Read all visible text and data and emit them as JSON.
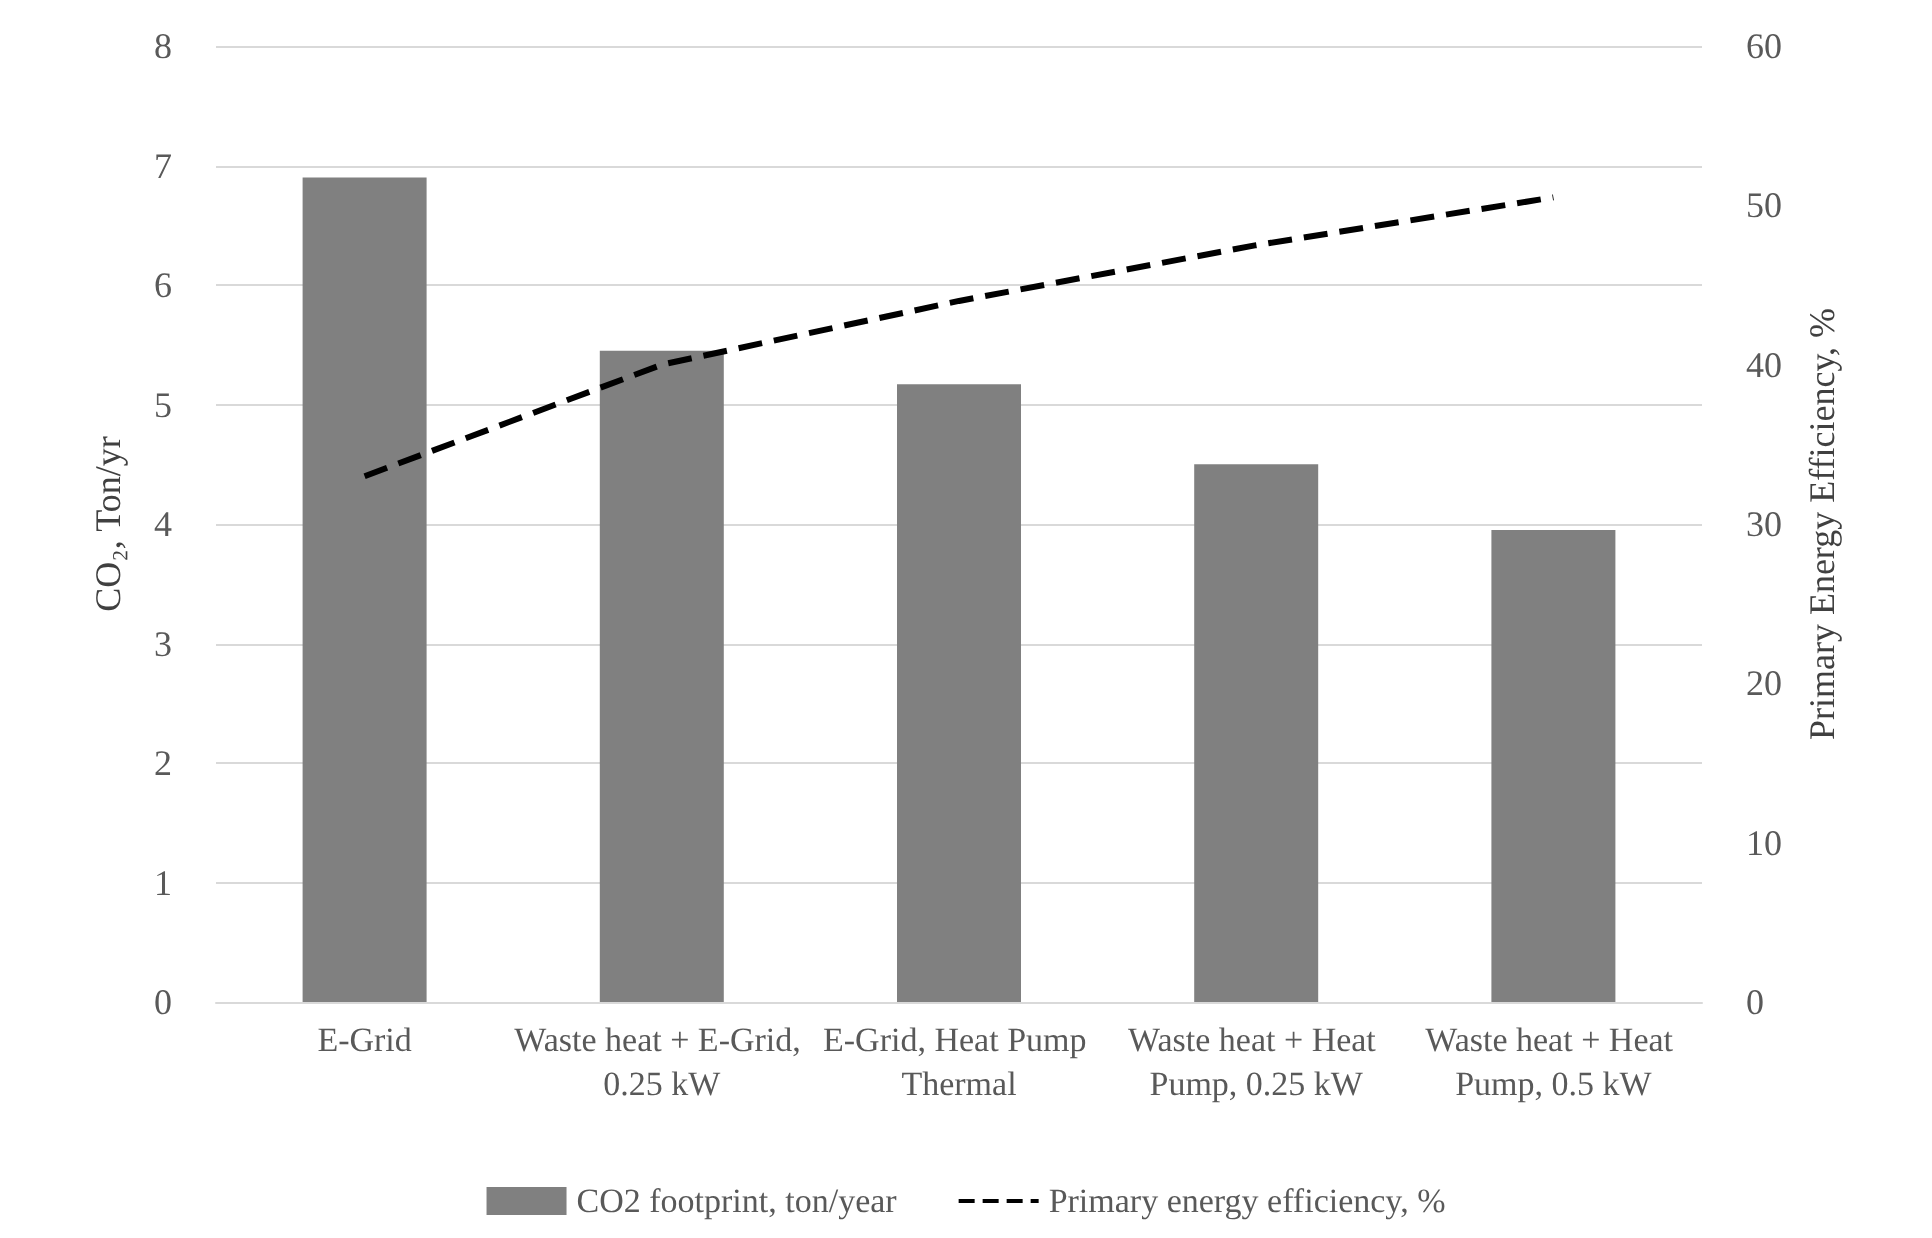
{
  "chart_data": {
    "type": "bar",
    "ylabel": "CO₂, Ton/yr",
    "y2label": "Primary Energy Efficiency, %",
    "categories": [
      "E-Grid",
      "Waste heat + E-Grid, 0.25 kW",
      "E-Grid, Heat Pump Thermal",
      "Waste heat + Heat Pump, 0.25 kW",
      "Waste heat + Heat Pump, 0.5 kW"
    ],
    "series": [
      {
        "name": "CO2 footprint, ton/year",
        "color": "#808080",
        "values": [
          6.9,
          5.45,
          5.17,
          4.5,
          3.95
        ]
      },
      {
        "name": "Primary energy efficiency, %",
        "type": "line",
        "axis": "y2",
        "color": "#000000",
        "line_style": "dashed",
        "marker": "none",
        "values": [
          33,
          40,
          44,
          47.5,
          50.5
        ]
      }
    ],
    "ylim": [
      0,
      8
    ],
    "yticks": [
      0,
      1,
      2,
      3,
      4,
      5,
      6,
      7,
      8
    ],
    "y2lim": [
      0,
      60
    ],
    "y2ticks": [
      0,
      10,
      20,
      30,
      40,
      50,
      60
    ],
    "grid": "y",
    "legend": "bottom"
  }
}
